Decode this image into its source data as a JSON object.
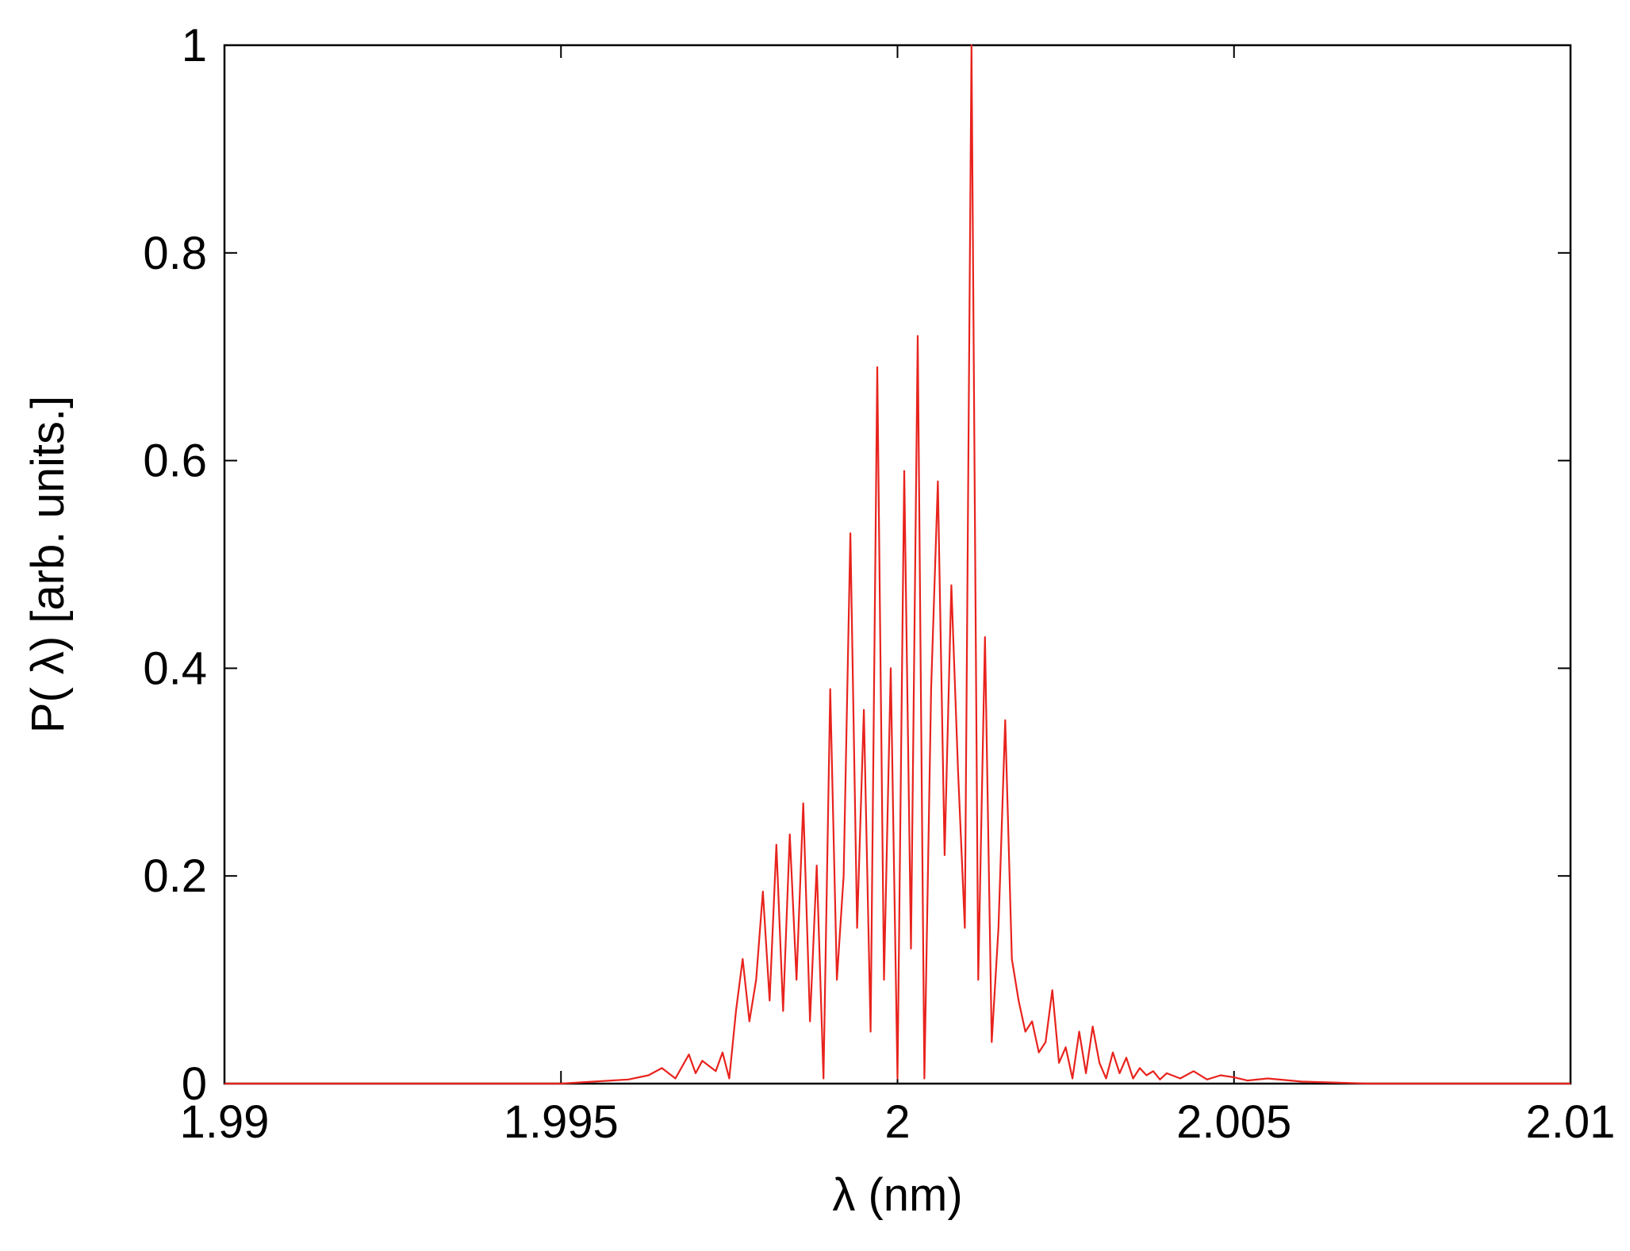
{
  "chart_data": {
    "type": "line",
    "title": "",
    "xlabel": "λ   (nm)",
    "ylabel": "P( λ) [arb. units.]",
    "xlim": [
      1.99,
      2.01
    ],
    "ylim": [
      0,
      1
    ],
    "grid": false,
    "line_color": "#e8231d",
    "x_ticks": [
      {
        "value": 1.99,
        "label": "1.99"
      },
      {
        "value": 1.995,
        "label": "1.995"
      },
      {
        "value": 2.0,
        "label": "2"
      },
      {
        "value": 2.005,
        "label": "2.005"
      },
      {
        "value": 2.01,
        "label": "2.01"
      }
    ],
    "y_ticks": [
      {
        "value": 0,
        "label": "0"
      },
      {
        "value": 0.2,
        "label": "0.2"
      },
      {
        "value": 0.4,
        "label": "0.4"
      },
      {
        "value": 0.6,
        "label": "0.6"
      },
      {
        "value": 0.8,
        "label": "0.8"
      },
      {
        "value": 1,
        "label": "1"
      }
    ],
    "series": [
      {
        "x": [
          1.99,
          1.993,
          1.995,
          1.9955,
          1.996,
          1.9963,
          1.9965,
          1.9967,
          1.9969,
          1.997,
          1.9971,
          1.9973,
          1.9974,
          1.9975,
          1.9976,
          1.9977,
          1.9978,
          1.9979,
          1.998,
          1.9981,
          1.9982,
          1.9983,
          1.9984,
          1.9985,
          1.9986,
          1.9987,
          1.9988,
          1.9989,
          1.999,
          1.9991,
          1.9992,
          1.9993,
          1.9994,
          1.9995,
          1.9996,
          1.9997,
          1.9998,
          1.9999,
          2.0,
          2.0001,
          2.0002,
          2.0003,
          2.0004,
          2.0005,
          2.0006,
          2.0007,
          2.0008,
          2.0009,
          2.001,
          2.0011,
          2.0012,
          2.0013,
          2.0014,
          2.0015,
          2.0016,
          2.0017,
          2.0018,
          2.0019,
          2.002,
          2.0021,
          2.0022,
          2.0023,
          2.0024,
          2.0025,
          2.0026,
          2.0027,
          2.0028,
          2.0029,
          2.003,
          2.0031,
          2.0032,
          2.0033,
          2.0034,
          2.0035,
          2.0036,
          2.0037,
          2.0038,
          2.0039,
          2.004,
          2.0042,
          2.0044,
          2.0046,
          2.0048,
          2.005,
          2.0052,
          2.0055,
          2.006,
          2.007,
          2.01
        ],
        "y": [
          0.0,
          0.0,
          0.0,
          0.002,
          0.004,
          0.008,
          0.015,
          0.005,
          0.028,
          0.01,
          0.022,
          0.012,
          0.03,
          0.005,
          0.07,
          0.12,
          0.06,
          0.1,
          0.185,
          0.08,
          0.23,
          0.07,
          0.24,
          0.1,
          0.27,
          0.06,
          0.21,
          0.005,
          0.38,
          0.1,
          0.2,
          0.53,
          0.15,
          0.36,
          0.05,
          0.69,
          0.1,
          0.4,
          0.005,
          0.59,
          0.13,
          0.72,
          0.005,
          0.38,
          0.58,
          0.22,
          0.48,
          0.3,
          0.15,
          1.0,
          0.1,
          0.43,
          0.04,
          0.15,
          0.35,
          0.12,
          0.08,
          0.05,
          0.06,
          0.03,
          0.04,
          0.09,
          0.02,
          0.035,
          0.005,
          0.05,
          0.01,
          0.055,
          0.02,
          0.005,
          0.03,
          0.01,
          0.025,
          0.005,
          0.015,
          0.008,
          0.012,
          0.004,
          0.01,
          0.005,
          0.012,
          0.004,
          0.008,
          0.006,
          0.003,
          0.005,
          0.002,
          0.0,
          0.0
        ]
      }
    ]
  }
}
